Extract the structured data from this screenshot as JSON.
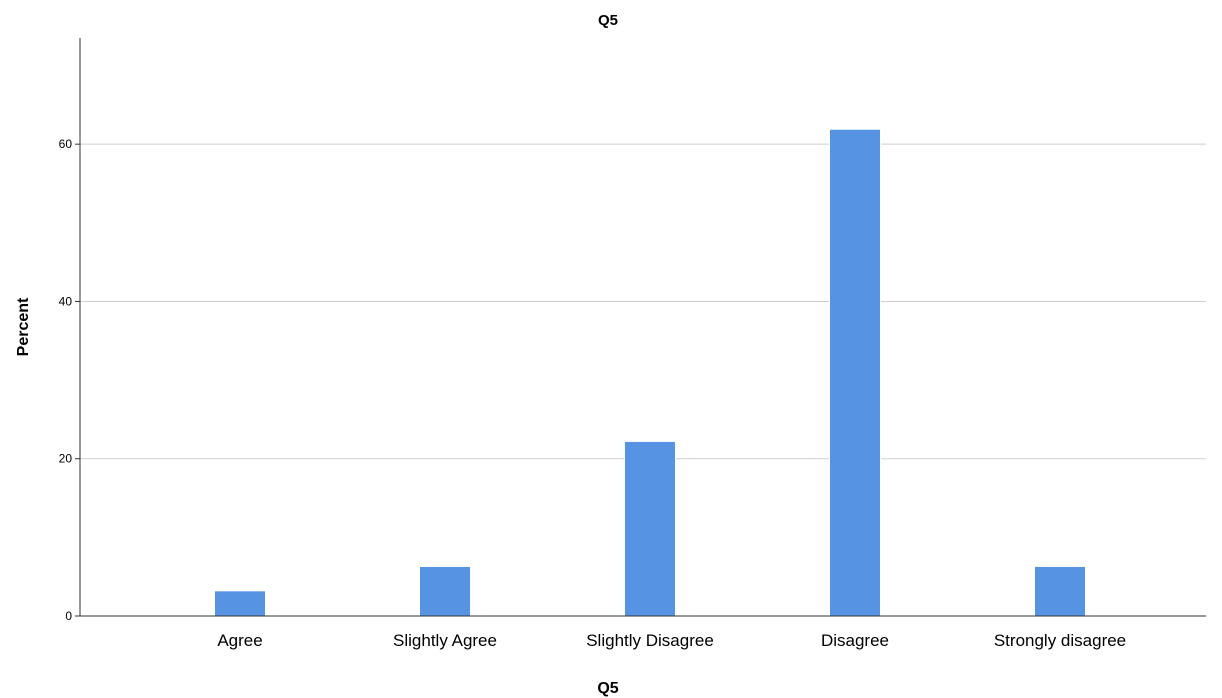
{
  "chart_data": {
    "type": "bar",
    "title": "Q5",
    "xlabel": "Q5",
    "ylabel": "Percent",
    "categories": [
      "Agree",
      "Slightly Agree",
      "Slightly Disagree",
      "Disagree",
      "Strongly disagree"
    ],
    "values": [
      3.2,
      6.3,
      22.2,
      61.9,
      6.3
    ],
    "yticks": [
      0,
      20,
      40,
      60
    ],
    "ylim": [
      0,
      73.5
    ],
    "grid": true,
    "bar_color": "#5694e3",
    "grid_color": "#cfcfcf"
  }
}
